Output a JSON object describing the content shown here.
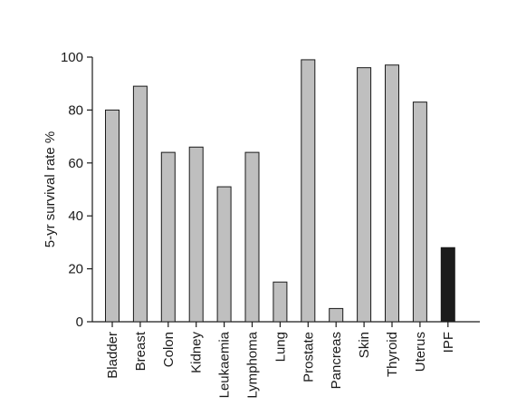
{
  "chart_data": {
    "type": "bar",
    "title": "",
    "xlabel": "",
    "ylabel": "5-yr survival rate %",
    "ylim": [
      0,
      100
    ],
    "yticks": [
      0,
      20,
      40,
      60,
      80,
      100
    ],
    "grid": false,
    "categories": [
      "Bladder",
      "Breast",
      "Colon",
      "Kidney",
      "Leukaemia",
      "Lymphoma",
      "Lung",
      "Prostate",
      "Pancreas",
      "Skin",
      "Thyroid",
      "Uterus",
      "IPF"
    ],
    "values": [
      80,
      89,
      64,
      66,
      51,
      64,
      15,
      99,
      5,
      96,
      97,
      83,
      28
    ],
    "colors": {
      "bar": "#bfbfbf",
      "highlight": "#1c1c1c",
      "stroke": "#1a1a1a"
    },
    "highlight_category": "IPF"
  }
}
